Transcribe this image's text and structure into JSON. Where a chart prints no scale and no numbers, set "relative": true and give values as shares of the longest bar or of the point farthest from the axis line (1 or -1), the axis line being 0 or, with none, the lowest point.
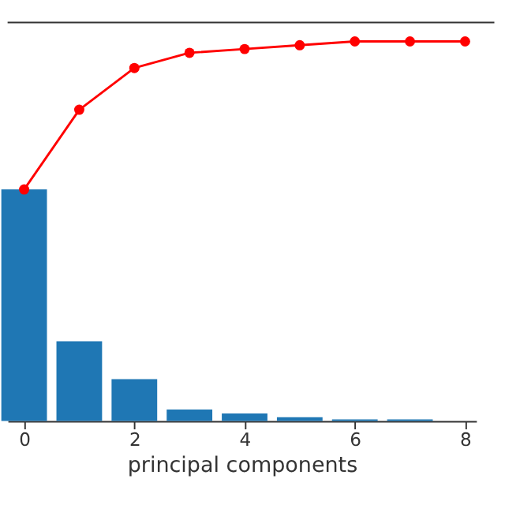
{
  "chart_data": {
    "type": "bar",
    "xlabel": "principal components",
    "relative": true,
    "x": [
      0,
      1,
      2,
      3,
      4,
      5,
      6,
      7,
      8
    ],
    "series": [
      {
        "color": "#1f77b4",
        "x": [
          0,
          1,
          2,
          3,
          4,
          5,
          6,
          7
        ],
        "values": [
          0.61,
          0.21,
          0.11,
          0.03,
          0.02,
          0.01,
          0.004,
          0.004
        ]
      },
      {
        "type": "line",
        "color": "#ff0000",
        "marker": "circle",
        "line_style": "solid",
        "values": [
          0.61,
          0.82,
          0.93,
          0.97,
          0.98,
          0.99,
          1.0,
          1.0,
          1.0
        ]
      }
    ],
    "xlim": [
      -0.3,
      8.2
    ],
    "xticks": [
      0,
      2,
      4,
      6,
      8
    ],
    "grid": false
  }
}
